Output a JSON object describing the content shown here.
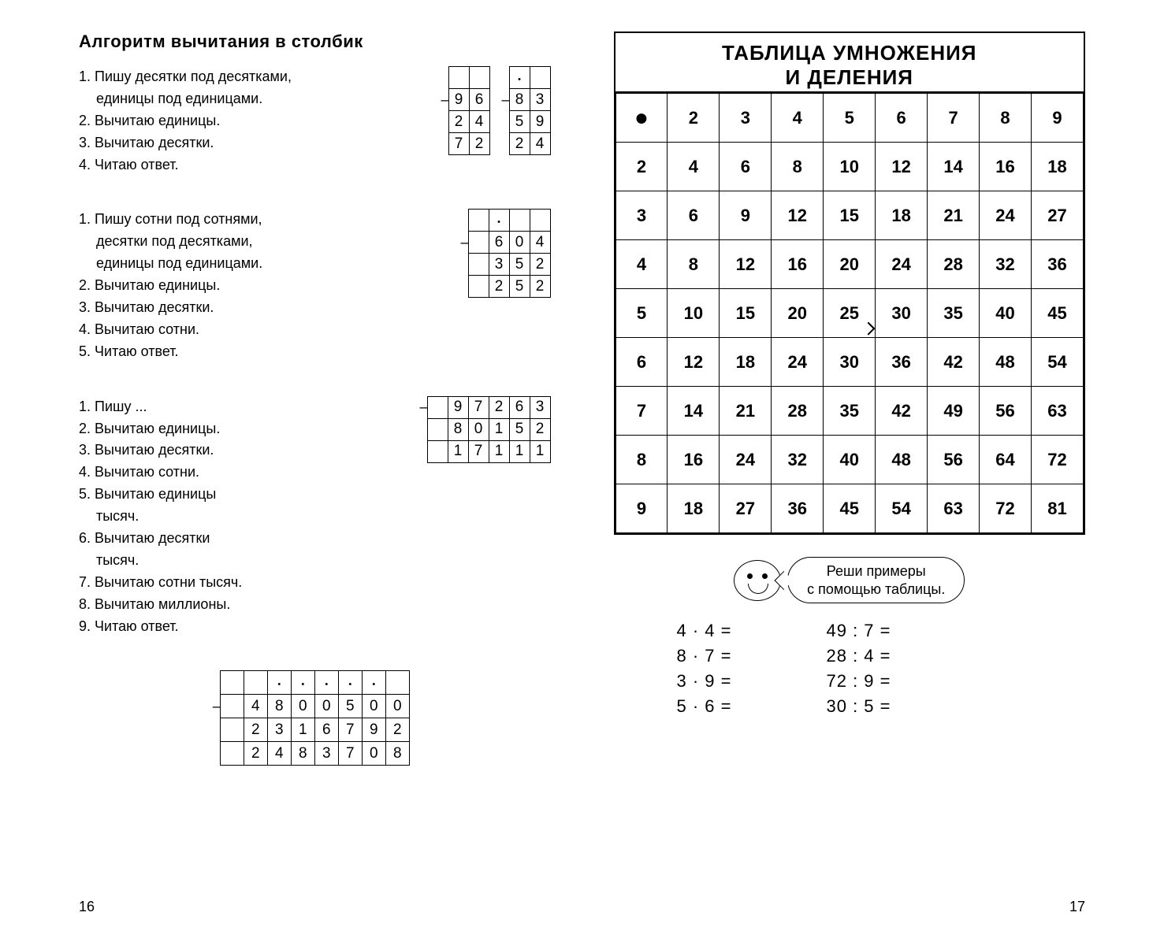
{
  "left": {
    "title": "Алгоритм  вычитания  в  столбик",
    "sectionA": {
      "steps": [
        "1. Пишу  десятки  под  десятками,",
        "единицы  под  единицами.",
        "2. Вычитаю  единицы.",
        "3. Вычитаю  десятки.",
        "4. Читаю  ответ."
      ],
      "table1": {
        "dots": [
          0,
          0,
          0,
          0,
          1,
          0
        ],
        "r1": [
          "",
          "9",
          "6",
          "",
          "8",
          "3"
        ],
        "r2": [
          "",
          "2",
          "4",
          "",
          "5",
          "9"
        ],
        "r3": [
          "",
          "7",
          "2",
          "",
          "2",
          "4"
        ]
      }
    },
    "sectionB": {
      "steps": [
        "1. Пишу  сотни  под  сотнями,",
        "десятки  под  десятками,",
        "единицы  под  единицами.",
        "2. Вычитаю  единицы.",
        "3. Вычитаю  десятки.",
        "4. Вычитаю  сотни.",
        "5. Читаю  ответ."
      ],
      "table": {
        "dots": [
          0,
          1,
          0,
          0
        ],
        "r1": [
          "",
          "6",
          "0",
          "4"
        ],
        "r2": [
          "",
          "3",
          "5",
          "2"
        ],
        "r3": [
          "",
          "2",
          "5",
          "2"
        ]
      }
    },
    "sectionC": {
      "steps": [
        "1. Пишу  ...",
        "2. Вычитаю  единицы.",
        "3. Вычитаю  десятки.",
        "4. Вычитаю  сотни.",
        "5. Вычитаю  единицы",
        "тысяч.",
        "6. Вычитаю  десятки",
        "тысяч.",
        "7. Вычитаю  сотни  тысяч.",
        "8. Вычитаю  миллионы.",
        "9. Читаю  ответ."
      ],
      "table": {
        "r1": [
          "",
          "9",
          "7",
          "2",
          "6",
          "3"
        ],
        "r2": [
          "",
          "8",
          "0",
          "1",
          "5",
          "2"
        ],
        "r3": [
          "",
          "1",
          "7",
          "1",
          "1",
          "1"
        ]
      }
    },
    "bigTable": {
      "dots": [
        0,
        0,
        1,
        1,
        1,
        1,
        1,
        0
      ],
      "r1": [
        "",
        "4",
        "8",
        "0",
        "0",
        "5",
        "0",
        "0"
      ],
      "r2": [
        "",
        "2",
        "3",
        "1",
        "6",
        "7",
        "9",
        "2"
      ],
      "r3": [
        "",
        "2",
        "4",
        "8",
        "3",
        "7",
        "0",
        "8"
      ]
    },
    "pageNum": "16"
  },
  "right": {
    "tableTitle1": "ТАБЛИЦА  УМНОЖЕНИЯ",
    "tableTitle2": "И  ДЕЛЕНИЯ",
    "header": [
      "●",
      "2",
      "3",
      "4",
      "5",
      "6",
      "7",
      "8",
      "9"
    ],
    "rows": [
      [
        "2",
        "4",
        "6",
        "8",
        "10",
        "12",
        "14",
        "16",
        "18"
      ],
      [
        "3",
        "6",
        "9",
        "12",
        "15",
        "18",
        "21",
        "24",
        "27"
      ],
      [
        "4",
        "8",
        "12",
        "16",
        "20",
        "24",
        "28",
        "32",
        "36"
      ],
      [
        "5",
        "10",
        "15",
        "20",
        "25",
        "30",
        "35",
        "40",
        "45"
      ],
      [
        "6",
        "12",
        "18",
        "24",
        "30",
        "36",
        "42",
        "48",
        "54"
      ],
      [
        "7",
        "14",
        "21",
        "28",
        "35",
        "42",
        "49",
        "56",
        "63"
      ],
      [
        "8",
        "16",
        "24",
        "32",
        "40",
        "48",
        "56",
        "64",
        "72"
      ],
      [
        "9",
        "18",
        "27",
        "36",
        "45",
        "54",
        "63",
        "72",
        "81"
      ]
    ],
    "speech1": "Реши  примеры",
    "speech2": "с  помощью  таблицы.",
    "exLeft": [
      "4 · 4  =",
      "8 · 7  =",
      "3 · 9  =",
      "5 · 6  ="
    ],
    "exRight": [
      "49  :  7  =",
      "28  :  4  =",
      "72  :  9  =",
      "30  :  5  ="
    ],
    "pageNum": "17"
  },
  "style": {
    "pointerCell": {
      "row": 4,
      "col": 4
    }
  }
}
